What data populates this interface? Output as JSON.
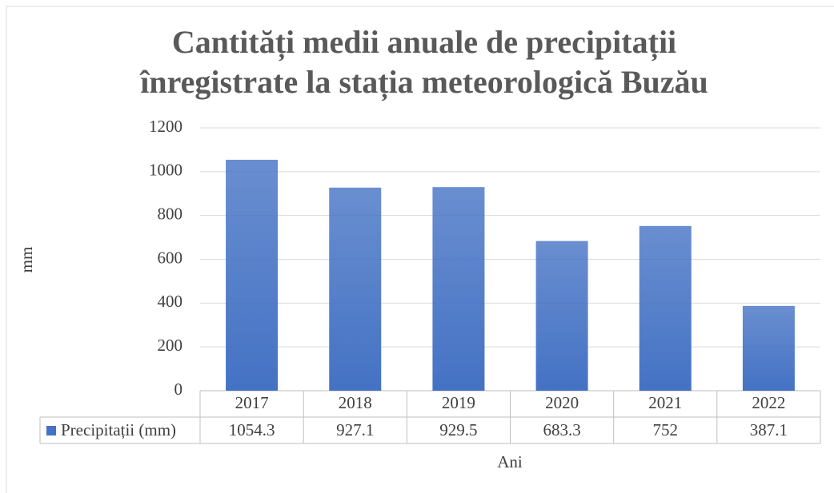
{
  "chart_data": {
    "type": "bar",
    "title": [
      "Cantități medii anuale de precipitații",
      "înregistrate la stația meteorologică Buzău"
    ],
    "y_label": "mm",
    "x_label": "Ani",
    "categories": [
      "2017",
      "2018",
      "2019",
      "2020",
      "2021",
      "2022"
    ],
    "series": [
      {
        "name": "Precipitații (mm)",
        "color": "#4472c4",
        "values": [
          1054.3,
          927.1,
          929.5,
          683.3,
          752,
          387.1
        ]
      }
    ],
    "ylim": [
      0,
      1200
    ],
    "yticks": [
      0,
      200,
      400,
      600,
      800,
      1000,
      1200
    ],
    "grid": true,
    "data_table": true
  }
}
